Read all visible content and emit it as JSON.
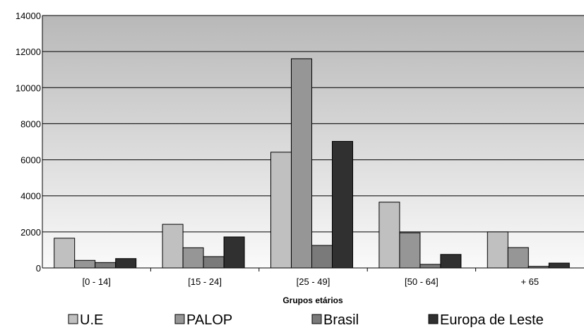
{
  "chart_data": {
    "type": "bar",
    "xlabel": "Grupos etários",
    "ylabel": "",
    "ylim": [
      0,
      14000
    ],
    "yticks": [
      0,
      2000,
      4000,
      6000,
      8000,
      10000,
      12000,
      14000
    ],
    "grid": true,
    "legend_position": "bottom",
    "categories": [
      "[0 - 14]",
      "[15 - 24]",
      "[25 - 49]",
      "[50 - 64]",
      "+ 65"
    ],
    "series": [
      {
        "name": "U.E",
        "color": "#c0c0c0",
        "values": [
          1650,
          2420,
          6420,
          3650,
          2000
        ]
      },
      {
        "name": "PALOP",
        "color": "#969696",
        "values": [
          420,
          1120,
          11600,
          1950,
          1130
        ]
      },
      {
        "name": "Brasil",
        "color": "#7a7a7a",
        "values": [
          300,
          630,
          1250,
          200,
          90
        ]
      },
      {
        "name": "Europa de Leste",
        "color": "#303030",
        "values": [
          520,
          1720,
          7020,
          750,
          270
        ]
      }
    ]
  }
}
